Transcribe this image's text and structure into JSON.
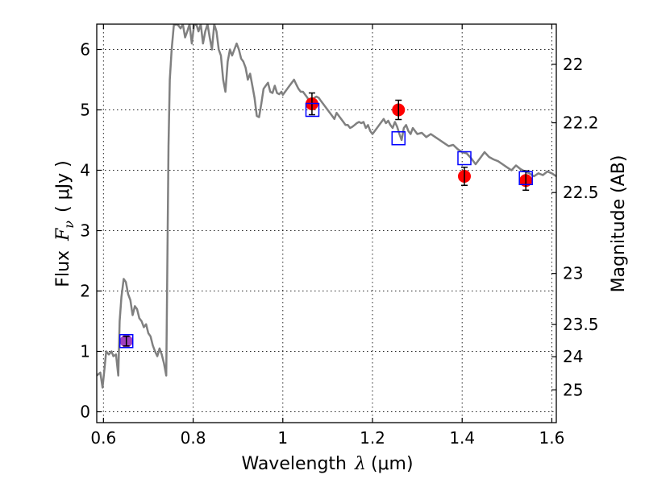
{
  "chart_data": {
    "type": "scatter",
    "xlabel": "Wavelength",
    "xlabel_symbol": "λ",
    "xlabel_unit": "(μm)",
    "ylabel": "Flux",
    "ylabel_symbol": "F",
    "ylabel_subscript": "ν",
    "ylabel_unit": "( μJy )",
    "y2label": "Magnitude (AB)",
    "xlim": [
      0.585,
      1.61
    ],
    "ylim": [
      -0.18,
      6.42
    ],
    "x_ticks": [
      0.6,
      0.8,
      1.0,
      1.2,
      1.4,
      1.6
    ],
    "x_tick_labels": [
      "0.6",
      "0.8",
      "1",
      "1.2",
      "1.4",
      "1.6"
    ],
    "y_ticks": [
      0,
      1,
      2,
      3,
      4,
      5,
      6
    ],
    "y_tick_labels": [
      "0",
      "1",
      "2",
      "3",
      "4",
      "5",
      "6"
    ],
    "y2_ticks": [
      22,
      22.2,
      22.5,
      23,
      23.5,
      24,
      25
    ],
    "y2_tick_labels": [
      "22",
      "22.2",
      "22.5",
      "23",
      "23.5",
      "24",
      "25"
    ],
    "grid": true,
    "series": [
      {
        "kind": "line",
        "color": "#808080",
        "x": [
          0.585,
          0.593,
          0.598,
          0.602,
          0.606,
          0.612,
          0.618,
          0.622,
          0.628,
          0.633,
          0.636,
          0.64,
          0.645,
          0.65,
          0.655,
          0.66,
          0.665,
          0.67,
          0.675,
          0.68,
          0.685,
          0.69,
          0.695,
          0.7,
          0.705,
          0.71,
          0.715,
          0.72,
          0.725,
          0.73,
          0.735,
          0.74,
          0.745,
          0.748,
          0.752,
          0.757,
          0.762,
          0.767,
          0.772,
          0.777,
          0.782,
          0.787,
          0.792,
          0.797,
          0.802,
          0.807,
          0.812,
          0.817,
          0.822,
          0.827,
          0.832,
          0.837,
          0.842,
          0.847,
          0.852,
          0.857,
          0.862,
          0.867,
          0.872,
          0.877,
          0.882,
          0.887,
          0.892,
          0.897,
          0.902,
          0.907,
          0.912,
          0.917,
          0.922,
          0.927,
          0.932,
          0.937,
          0.942,
          0.947,
          0.952,
          0.957,
          0.962,
          0.967,
          0.972,
          0.977,
          0.982,
          0.987,
          0.992,
          0.997,
          1.0,
          1.005,
          1.01,
          1.015,
          1.02,
          1.025,
          1.03,
          1.035,
          1.04,
          1.045,
          1.05,
          1.055,
          1.06,
          1.065,
          1.07,
          1.075,
          1.08,
          1.085,
          1.09,
          1.095,
          1.1,
          1.105,
          1.11,
          1.115,
          1.12,
          1.125,
          1.13,
          1.135,
          1.14,
          1.145,
          1.15,
          1.155,
          1.16,
          1.165,
          1.17,
          1.175,
          1.18,
          1.185,
          1.19,
          1.195,
          1.2,
          1.205,
          1.21,
          1.215,
          1.22,
          1.225,
          1.23,
          1.235,
          1.24,
          1.245,
          1.25,
          1.255,
          1.26,
          1.265,
          1.27,
          1.275,
          1.28,
          1.285,
          1.29,
          1.3,
          1.31,
          1.32,
          1.33,
          1.34,
          1.35,
          1.36,
          1.37,
          1.38,
          1.39,
          1.4,
          1.41,
          1.42,
          1.43,
          1.44,
          1.45,
          1.46,
          1.47,
          1.48,
          1.49,
          1.5,
          1.51,
          1.52,
          1.53,
          1.54,
          1.55,
          1.56,
          1.57,
          1.58,
          1.59,
          1.6,
          1.61
        ],
        "y": [
          0.6,
          0.65,
          0.4,
          0.7,
          1.0,
          0.95,
          1.0,
          0.92,
          0.95,
          0.6,
          1.5,
          1.9,
          2.2,
          2.15,
          1.95,
          1.85,
          1.6,
          1.75,
          1.7,
          1.55,
          1.5,
          1.4,
          1.45,
          1.3,
          1.25,
          1.1,
          1.0,
          0.92,
          1.05,
          0.95,
          0.8,
          0.6,
          4.4,
          5.5,
          6.0,
          6.4,
          6.42,
          6.4,
          6.35,
          6.42,
          6.2,
          6.3,
          6.42,
          6.1,
          6.4,
          6.42,
          6.3,
          6.42,
          6.1,
          6.3,
          6.42,
          6.2,
          6.0,
          6.42,
          6.3,
          6.0,
          5.9,
          5.5,
          5.3,
          5.8,
          6.0,
          5.9,
          6.0,
          6.1,
          6.0,
          5.85,
          5.8,
          5.7,
          5.5,
          5.6,
          5.4,
          5.2,
          4.9,
          4.88,
          5.1,
          5.35,
          5.4,
          5.45,
          5.3,
          5.28,
          5.4,
          5.28,
          5.26,
          5.3,
          5.25,
          5.3,
          5.35,
          5.4,
          5.45,
          5.5,
          5.42,
          5.35,
          5.3,
          5.3,
          5.25,
          5.2,
          5.1,
          5.15,
          5.2,
          5.22,
          5.2,
          5.15,
          5.1,
          5.05,
          5.0,
          4.95,
          4.9,
          4.85,
          4.95,
          4.9,
          4.85,
          4.8,
          4.75,
          4.75,
          4.7,
          4.72,
          4.75,
          4.78,
          4.8,
          4.78,
          4.8,
          4.7,
          4.75,
          4.65,
          4.6,
          4.65,
          4.7,
          4.75,
          4.8,
          4.85,
          4.78,
          4.82,
          4.75,
          4.7,
          4.8,
          4.72,
          4.6,
          4.5,
          4.7,
          4.75,
          4.65,
          4.6,
          4.7,
          4.6,
          4.62,
          4.55,
          4.6,
          4.55,
          4.5,
          4.45,
          4.4,
          4.42,
          4.35,
          4.3,
          4.28,
          4.2,
          4.1,
          4.2,
          4.3,
          4.22,
          4.18,
          4.15,
          4.1,
          4.05,
          4.0,
          4.08,
          4.02,
          3.98,
          3.95,
          3.9,
          3.95,
          3.92,
          3.98,
          3.95,
          3.9
        ]
      },
      {
        "kind": "points-with-errorbars",
        "color": "#ff0000",
        "x": [
          1.065,
          1.258,
          1.405,
          1.542
        ],
        "y": [
          5.1,
          5.0,
          3.9,
          3.83
        ],
        "yerr": [
          0.18,
          0.16,
          0.15,
          0.16
        ]
      },
      {
        "kind": "point-with-errorbar",
        "color": "#a040c0",
        "x": [
          0.651
        ],
        "y": [
          1.17
        ],
        "yerr": [
          0.08
        ]
      },
      {
        "kind": "open-squares",
        "color": "#0000ff",
        "x": [
          0.651,
          1.066,
          1.258,
          1.405,
          1.542
        ],
        "y": [
          1.17,
          5.0,
          4.53,
          4.2,
          3.87
        ]
      }
    ]
  }
}
